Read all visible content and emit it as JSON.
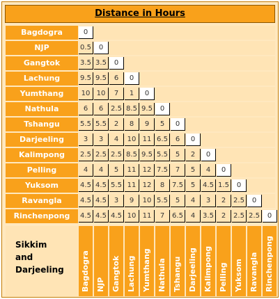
{
  "title": "Distance in Hours",
  "footer_label_lines": [
    "Sikkim",
    "and",
    "Darjeeling"
  ],
  "places": [
    "Bagdogra",
    "NJP",
    "Gangtok",
    "Lachung",
    "Yumthang",
    "Nathula",
    "Tshangu",
    "Darjeeling",
    "Kalimpong",
    "Pelling",
    "Yuksom",
    "Ravangla",
    "Rinchenpong"
  ],
  "matrix": [
    [
      "0"
    ],
    [
      "0.5",
      "0"
    ],
    [
      "3.5",
      "3.5",
      "0"
    ],
    [
      "9.5",
      "9.5",
      "6",
      "0"
    ],
    [
      "10",
      "10",
      "7",
      "1",
      "0"
    ],
    [
      "6",
      "6",
      "2.5",
      "8.5",
      "9.5",
      "0"
    ],
    [
      "5.5",
      "5.5",
      "2",
      "8",
      "9",
      "5",
      "0"
    ],
    [
      "3",
      "3",
      "4",
      "10",
      "11",
      "6.5",
      "6",
      "0"
    ],
    [
      "2.5",
      "2.5",
      "2.5",
      "8.5",
      "9.5",
      "5.5",
      "5",
      "2",
      "0"
    ],
    [
      "4",
      "4",
      "5",
      "11",
      "12",
      "7.5",
      "7",
      "5",
      "4",
      "0"
    ],
    [
      "4.5",
      "4.5",
      "5.5",
      "11",
      "12",
      "8",
      "7.5",
      "5",
      "4.5",
      "1.5",
      "0"
    ],
    [
      "4.5",
      "4.5",
      "3",
      "9",
      "10",
      "5.5",
      "5",
      "4",
      "3",
      "2",
      "2.5",
      "0"
    ],
    [
      "4.5",
      "4.5",
      "4.5",
      "10",
      "11",
      "7",
      "6.5",
      "4",
      "3.5",
      "2",
      "2.5",
      "2.5",
      "0"
    ]
  ],
  "colors": {
    "header_orange": "#f9a11b",
    "cell_bg": "#ffe4b5"
  }
}
